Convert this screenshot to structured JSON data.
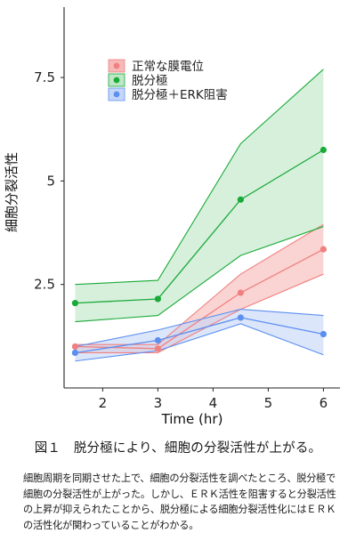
{
  "chart_data": {
    "type": "line",
    "ylabel": "細胞分裂活性",
    "xlabel": "Time (hr)",
    "xlim": [
      1.3,
      6.3
    ],
    "ylim": [
      0,
      9.2
    ],
    "x_ticks": [
      2,
      3,
      4,
      5,
      6
    ],
    "y_ticks": [
      2.5,
      5,
      7.5
    ],
    "grid": false,
    "legend_position": "top-left",
    "x": [
      1.5,
      3,
      4.5,
      6
    ],
    "series": [
      {
        "name": "正常な膜電位",
        "color": "#f08080",
        "fill": "#f7b9b7",
        "values": [
          1.0,
          0.95,
          2.3,
          3.35
        ],
        "lower": [
          0.85,
          0.85,
          1.9,
          2.75
        ],
        "upper": [
          1.05,
          1.05,
          2.75,
          3.95
        ]
      },
      {
        "name": "脱分極",
        "color": "#1aaa38",
        "fill": "#bfe6c6",
        "values": [
          2.05,
          2.15,
          4.55,
          5.75
        ],
        "lower": [
          1.6,
          1.75,
          3.2,
          3.9
        ],
        "upper": [
          2.5,
          2.6,
          5.9,
          7.7
        ]
      },
      {
        "name": "脱分極＋ERK阻害",
        "color": "#5b8ff0",
        "fill": "#c6d6f8",
        "values": [
          0.85,
          1.15,
          1.7,
          1.3
        ],
        "lower": [
          0.65,
          0.9,
          1.55,
          0.8
        ],
        "upper": [
          1.0,
          1.4,
          1.9,
          1.75
        ]
      }
    ]
  },
  "caption": {
    "title": "図１　脱分極により、細胞の分裂活性が上がる。",
    "body": "細胞周期を同期させた上で、細胞の分裂活性を調べたところ、脱分極で細胞の分裂活性が上がった。しかし、ＥＲＫ活性を阻害すると分裂活性の上昇が抑えられたことから、脱分極による細胞分裂活性化にはＥＲＫの活性化が関わっていることがわかる。"
  }
}
